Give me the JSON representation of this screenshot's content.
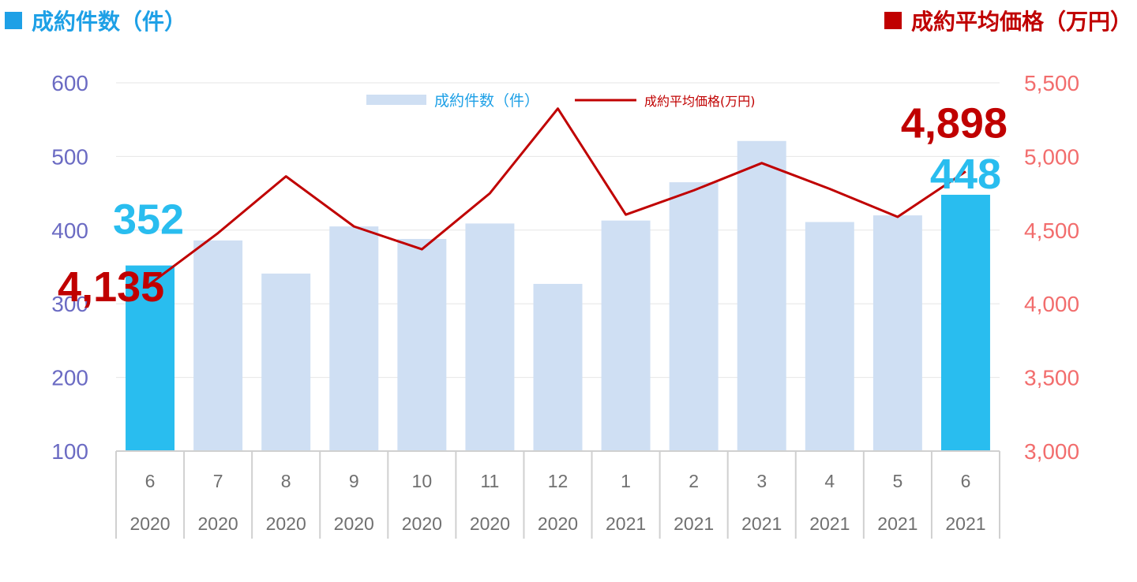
{
  "header": {
    "left_title": "成約件数（件）",
    "right_title": "成約平均価格（万円）",
    "left_color": "#1ea0e6",
    "right_color": "#c00000"
  },
  "chart_data": {
    "type": "bar+line",
    "categories": [
      {
        "month": "6",
        "year": "2020"
      },
      {
        "month": "7",
        "year": "2020"
      },
      {
        "month": "8",
        "year": "2020"
      },
      {
        "month": "9",
        "year": "2020"
      },
      {
        "month": "10",
        "year": "2020"
      },
      {
        "month": "11",
        "year": "2020"
      },
      {
        "month": "12",
        "year": "2020"
      },
      {
        "month": "1",
        "year": "2021"
      },
      {
        "month": "2",
        "year": "2021"
      },
      {
        "month": "3",
        "year": "2021"
      },
      {
        "month": "4",
        "year": "2021"
      },
      {
        "month": "5",
        "year": "2021"
      },
      {
        "month": "6",
        "year": "2021"
      }
    ],
    "series": [
      {
        "name": "成約件数（件）",
        "axis": "left",
        "kind": "bar",
        "color": "#cfdff3",
        "highlight_color": "#29bdef",
        "highlight_indices": [
          0,
          12
        ],
        "values": [
          352,
          386,
          341,
          405,
          388,
          409,
          327,
          413,
          465,
          521,
          411,
          420,
          448
        ]
      },
      {
        "name": "成約平均価格(万円)",
        "axis": "right",
        "kind": "line",
        "color": "#c00000",
        "values": [
          4135,
          4480,
          4865,
          4525,
          4370,
          4750,
          5325,
          4605,
          4770,
          4955,
          4780,
          4590,
          4898
        ]
      }
    ],
    "left_axis": {
      "min": 100,
      "max": 600,
      "ticks": [
        "100",
        "200",
        "300",
        "400",
        "500",
        "600"
      ],
      "color": "#6b6bc3"
    },
    "right_axis": {
      "min": 3000,
      "max": 5500,
      "ticks": [
        "3,000",
        "3,500",
        "4,000",
        "4,500",
        "5,000",
        "5,500"
      ],
      "color": "#f26d6d"
    },
    "annotations": [
      {
        "text": "352",
        "series": 0,
        "index": 0,
        "color": "#29bdef"
      },
      {
        "text": "4,135",
        "series": 1,
        "index": 0,
        "color": "#c00000"
      },
      {
        "text": "448",
        "series": 0,
        "index": 12,
        "color": "#29bdef"
      },
      {
        "text": "4,898",
        "series": 1,
        "index": 12,
        "color": "#c00000"
      }
    ],
    "legend": {
      "position": "top-center",
      "bar_label": "成約件数（件）",
      "line_label": "成約平均価格(万円)"
    },
    "grid": true
  }
}
